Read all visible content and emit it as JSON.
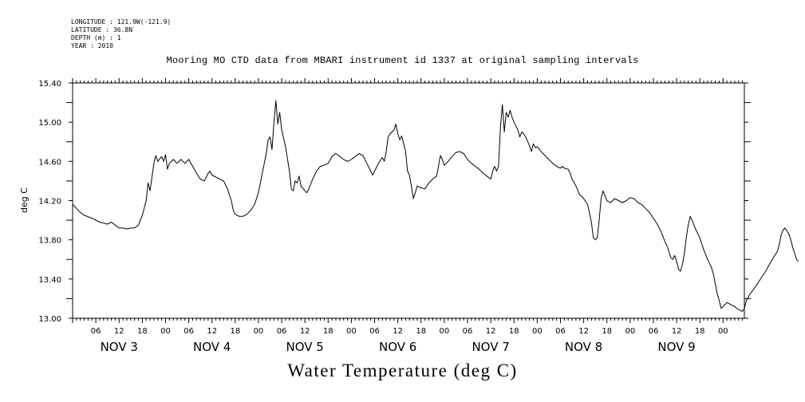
{
  "header_meta": [
    "LONGITUDE : 121.9W(-121.9)",
    "LATITUDE : 36.8N",
    "DEPTH (m) : 1",
    "YEAR : 2010"
  ],
  "chart_data": {
    "type": "line",
    "title": "Mooring MO CTD data from MBARI instrument id 1337 at original sampling intervals",
    "xlabel": "Water Temperature (deg C)",
    "ylabel": "deg C",
    "ylim": [
      13.0,
      15.4
    ],
    "yticks": [
      "13.00",
      "13.40",
      "13.80",
      "14.20",
      "14.60",
      "15.00",
      "15.40"
    ],
    "xlim_hours": [
      0,
      173.5
    ],
    "hour_ticks": [
      "06",
      "12",
      "18",
      "00",
      "06",
      "12",
      "18",
      "00",
      "06",
      "12",
      "18",
      "00",
      "06",
      "12",
      "18",
      "00",
      "06",
      "12",
      "18",
      "00",
      "06",
      "12",
      "18",
      "00",
      "06",
      "12",
      "18",
      "00"
    ],
    "day_labels": [
      "NOV 3",
      "NOV 4",
      "NOV 5",
      "NOV 6",
      "NOV 7",
      "NOV 8",
      "NOV 9"
    ],
    "series": [
      {
        "color": "#000000",
        "points": [
          [
            0,
            14.16
          ],
          [
            1,
            14.12
          ],
          [
            2,
            14.08
          ],
          [
            3,
            14.05
          ],
          [
            5,
            14.02
          ],
          [
            7,
            13.98
          ],
          [
            9,
            13.96
          ],
          [
            10,
            13.98
          ],
          [
            11,
            13.95
          ],
          [
            12,
            13.92
          ],
          [
            13,
            13.92
          ],
          [
            14,
            13.91
          ],
          [
            15,
            13.92
          ],
          [
            16,
            13.92
          ],
          [
            17,
            13.95
          ],
          [
            18,
            14.05
          ],
          [
            19,
            14.2
          ],
          [
            19.5,
            14.38
          ],
          [
            20,
            14.3
          ],
          [
            21,
            14.58
          ],
          [
            21.5,
            14.66
          ],
          [
            22,
            14.6
          ],
          [
            23,
            14.65
          ],
          [
            23.5,
            14.6
          ],
          [
            24,
            14.67
          ],
          [
            24.5,
            14.52
          ],
          [
            25,
            14.58
          ],
          [
            26,
            14.62
          ],
          [
            27,
            14.58
          ],
          [
            28,
            14.62
          ],
          [
            29,
            14.58
          ],
          [
            30,
            14.62
          ],
          [
            31,
            14.55
          ],
          [
            32,
            14.48
          ],
          [
            33,
            14.42
          ],
          [
            34,
            14.4
          ],
          [
            35,
            14.48
          ],
          [
            35.5,
            14.5
          ],
          [
            36,
            14.46
          ],
          [
            37,
            14.44
          ],
          [
            38,
            14.42
          ],
          [
            39,
            14.4
          ],
          [
            40,
            14.32
          ],
          [
            41,
            14.2
          ],
          [
            41.5,
            14.1
          ],
          [
            42,
            14.06
          ],
          [
            43,
            14.04
          ],
          [
            44,
            14.04
          ],
          [
            45,
            14.06
          ],
          [
            46,
            14.1
          ],
          [
            47,
            14.16
          ],
          [
            48,
            14.28
          ],
          [
            49,
            14.48
          ],
          [
            50,
            14.68
          ],
          [
            50.5,
            14.82
          ],
          [
            51,
            14.85
          ],
          [
            51.5,
            14.72
          ],
          [
            52,
            15.0
          ],
          [
            52.5,
            15.22
          ],
          [
            53,
            14.98
          ],
          [
            53.5,
            15.1
          ],
          [
            54,
            14.92
          ],
          [
            55,
            14.75
          ],
          [
            56,
            14.5
          ],
          [
            56.5,
            14.32
          ],
          [
            57,
            14.3
          ],
          [
            57.5,
            14.4
          ],
          [
            58,
            14.38
          ],
          [
            58.5,
            14.45
          ],
          [
            59,
            14.35
          ],
          [
            60,
            14.3
          ],
          [
            60.5,
            14.28
          ],
          [
            61,
            14.32
          ],
          [
            62,
            14.42
          ],
          [
            63,
            14.5
          ],
          [
            64,
            14.55
          ],
          [
            65,
            14.56
          ],
          [
            66,
            14.58
          ],
          [
            67,
            14.65
          ],
          [
            68,
            14.68
          ],
          [
            69,
            14.65
          ],
          [
            70,
            14.62
          ],
          [
            71,
            14.6
          ],
          [
            72,
            14.62
          ],
          [
            73,
            14.65
          ],
          [
            74,
            14.68
          ],
          [
            75,
            14.66
          ],
          [
            76,
            14.58
          ],
          [
            77,
            14.5
          ],
          [
            77.5,
            14.46
          ],
          [
            78,
            14.5
          ],
          [
            79,
            14.58
          ],
          [
            80,
            14.64
          ],
          [
            80.5,
            14.6
          ],
          [
            81,
            14.7
          ],
          [
            81.5,
            14.85
          ],
          [
            82,
            14.88
          ],
          [
            83,
            14.92
          ],
          [
            83.5,
            14.98
          ],
          [
            84,
            14.88
          ],
          [
            84.5,
            14.82
          ],
          [
            85,
            14.86
          ],
          [
            86,
            14.7
          ],
          [
            86.5,
            14.5
          ],
          [
            87,
            14.46
          ],
          [
            87.5,
            14.35
          ],
          [
            88,
            14.22
          ],
          [
            88.5,
            14.28
          ],
          [
            89,
            14.35
          ],
          [
            90,
            14.33
          ],
          [
            91,
            14.32
          ],
          [
            92,
            14.38
          ],
          [
            93,
            14.42
          ],
          [
            94,
            14.45
          ],
          [
            94.5,
            14.55
          ],
          [
            95,
            14.66
          ],
          [
            95.5,
            14.62
          ],
          [
            96,
            14.56
          ],
          [
            97,
            14.6
          ],
          [
            98,
            14.65
          ],
          [
            99,
            14.69
          ],
          [
            100,
            14.7
          ],
          [
            101,
            14.68
          ],
          [
            102,
            14.62
          ],
          [
            103,
            14.58
          ],
          [
            104,
            14.55
          ],
          [
            105,
            14.52
          ],
          [
            106,
            14.48
          ],
          [
            107,
            14.45
          ],
          [
            108,
            14.42
          ],
          [
            108.5,
            14.5
          ],
          [
            109,
            14.55
          ],
          [
            109.5,
            14.5
          ],
          [
            110,
            14.55
          ],
          [
            110.5,
            14.95
          ],
          [
            111,
            15.18
          ],
          [
            111.5,
            14.9
          ],
          [
            112,
            15.1
          ],
          [
            112.5,
            15.05
          ],
          [
            113,
            15.12
          ],
          [
            113.5,
            15.05
          ],
          [
            114,
            15.0
          ],
          [
            115,
            14.92
          ],
          [
            115.5,
            14.85
          ],
          [
            116,
            14.9
          ],
          [
            116.5,
            14.88
          ],
          [
            117,
            14.85
          ],
          [
            118,
            14.76
          ],
          [
            118.5,
            14.7
          ],
          [
            119,
            14.78
          ],
          [
            119.5,
            14.74
          ],
          [
            120,
            14.75
          ],
          [
            121,
            14.7
          ],
          [
            122,
            14.66
          ],
          [
            123,
            14.62
          ],
          [
            124,
            14.58
          ],
          [
            125,
            14.55
          ],
          [
            126,
            14.53
          ],
          [
            126.5,
            14.55
          ],
          [
            127,
            14.53
          ],
          [
            128,
            14.52
          ],
          [
            128.5,
            14.48
          ],
          [
            129,
            14.42
          ],
          [
            130,
            14.35
          ],
          [
            130.5,
            14.3
          ],
          [
            131,
            14.26
          ],
          [
            132,
            14.22
          ],
          [
            133,
            14.16
          ],
          [
            134,
            13.98
          ],
          [
            134.5,
            13.82
          ],
          [
            135,
            13.8
          ],
          [
            135.5,
            13.82
          ],
          [
            136,
            14.0
          ],
          [
            136.5,
            14.22
          ],
          [
            137,
            14.3
          ],
          [
            137.5,
            14.25
          ],
          [
            138,
            14.2
          ],
          [
            139,
            14.18
          ],
          [
            140,
            14.22
          ],
          [
            141,
            14.2
          ],
          [
            142,
            14.18
          ],
          [
            143,
            14.2
          ],
          [
            144,
            14.23
          ],
          [
            145,
            14.22
          ],
          [
            146,
            14.18
          ],
          [
            147,
            14.16
          ],
          [
            148,
            14.12
          ],
          [
            149,
            14.08
          ],
          [
            150,
            14.02
          ],
          [
            151,
            13.96
          ],
          [
            152,
            13.88
          ],
          [
            153,
            13.78
          ],
          [
            153.5,
            13.74
          ],
          [
            154,
            13.68
          ],
          [
            154.5,
            13.62
          ],
          [
            155,
            13.6
          ],
          [
            155.5,
            13.64
          ],
          [
            156,
            13.58
          ],
          [
            156.5,
            13.5
          ],
          [
            157,
            13.48
          ],
          [
            157.5,
            13.55
          ],
          [
            158,
            13.66
          ],
          [
            158.5,
            13.82
          ],
          [
            159,
            13.95
          ],
          [
            159.5,
            14.04
          ],
          [
            160,
            14.0
          ],
          [
            161,
            13.9
          ],
          [
            162,
            13.82
          ],
          [
            163,
            13.7
          ],
          [
            163.5,
            13.65
          ],
          [
            164,
            13.6
          ],
          [
            165,
            13.52
          ],
          [
            165.5,
            13.45
          ],
          [
            166,
            13.35
          ],
          [
            166.5,
            13.25
          ],
          [
            167,
            13.18
          ],
          [
            167.5,
            13.1
          ],
          [
            168,
            13.12
          ],
          [
            168.5,
            13.14
          ],
          [
            169,
            13.16
          ],
          [
            170,
            13.14
          ],
          [
            171,
            13.12
          ],
          [
            171.5,
            13.1
          ],
          [
            172,
            13.09
          ],
          [
            172.5,
            13.08
          ],
          [
            173,
            13.07
          ],
          [
            173.5,
            13.1
          ],
          [
            174,
            13.18
          ],
          [
            175,
            13.25
          ],
          [
            176,
            13.3
          ],
          [
            177,
            13.36
          ],
          [
            178,
            13.42
          ],
          [
            179,
            13.48
          ],
          [
            180,
            13.55
          ],
          [
            181,
            13.62
          ],
          [
            182,
            13.68
          ],
          [
            182.5,
            13.75
          ],
          [
            183,
            13.85
          ],
          [
            183.5,
            13.9
          ],
          [
            184,
            13.92
          ],
          [
            185,
            13.86
          ],
          [
            185.5,
            13.8
          ],
          [
            186,
            13.72
          ],
          [
            186.5,
            13.66
          ],
          [
            187,
            13.6
          ],
          [
            187.5,
            13.58
          ]
        ]
      }
    ]
  }
}
